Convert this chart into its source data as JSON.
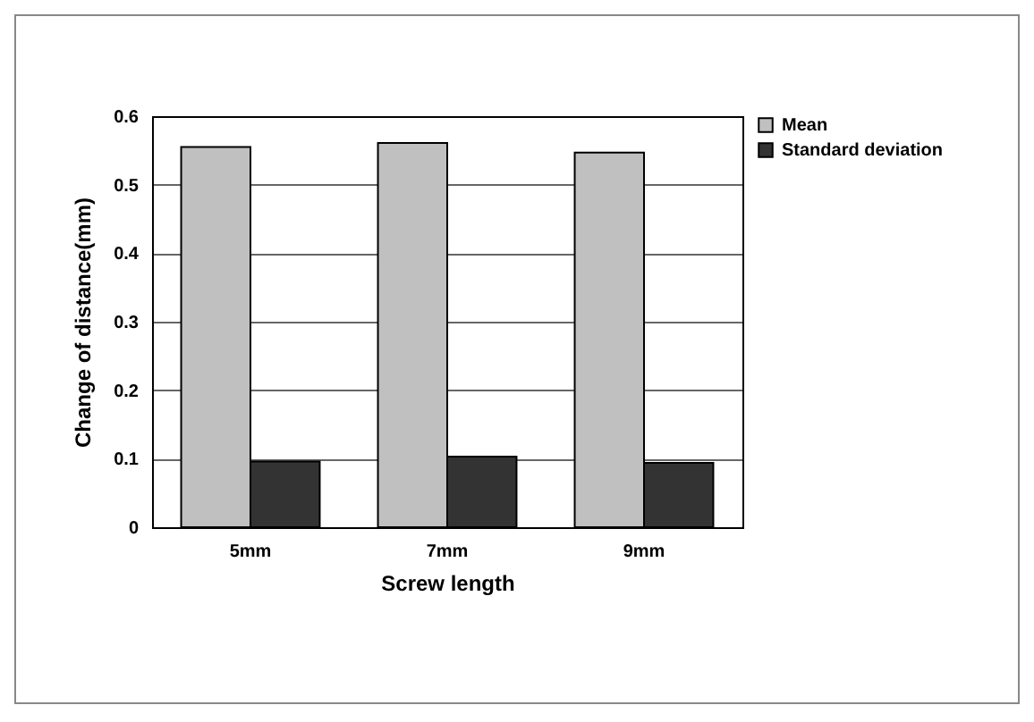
{
  "chart_data": {
    "type": "bar",
    "xlabel": "Screw length",
    "ylabel": "Change of distance(mm)",
    "categories": [
      "5mm",
      "7mm",
      "9mm"
    ],
    "series": [
      {
        "name": "Mean",
        "color": "#c0c0c0",
        "values": [
          0.555,
          0.561,
          0.547
        ]
      },
      {
        "name": "Standard deviation",
        "color": "#333333",
        "values": [
          0.096,
          0.103,
          0.094
        ]
      }
    ],
    "ylim": [
      0,
      0.6
    ],
    "yticks": [
      0,
      0.1,
      0.2,
      0.3,
      0.4,
      0.5,
      0.6
    ],
    "grid": "y",
    "legend": "right"
  }
}
